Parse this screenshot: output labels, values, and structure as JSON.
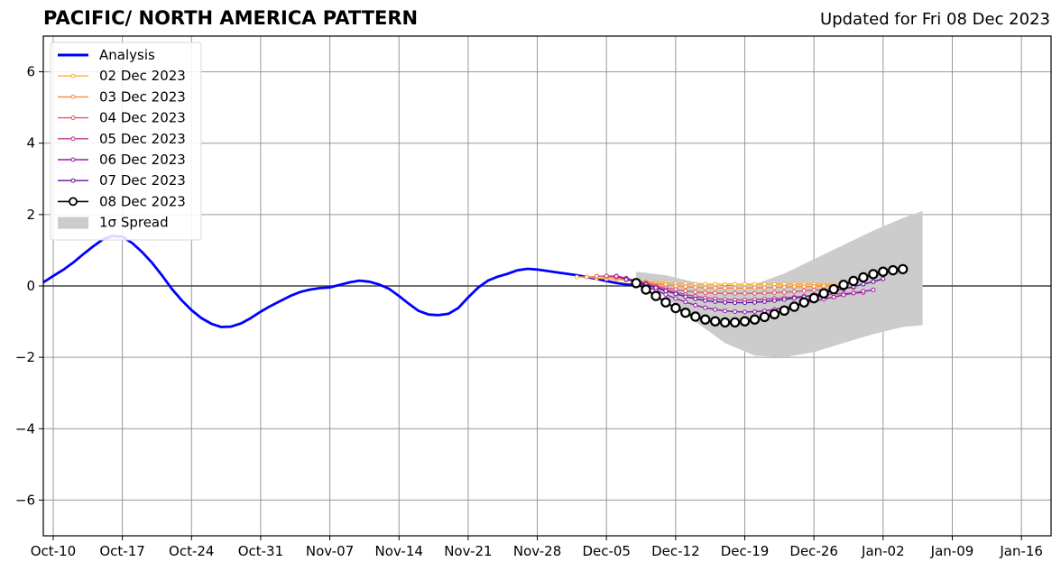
{
  "title": "PACIFIC/ NORTH AMERICA PATTERN",
  "subtitle": "Updated for Fri 08 Dec 2023",
  "chart_data": {
    "type": "line",
    "x_ticks": [
      "Oct-10",
      "Oct-17",
      "Oct-24",
      "Oct-31",
      "Nov-07",
      "Nov-14",
      "Nov-21",
      "Nov-28",
      "Dec-05",
      "Dec-12",
      "Dec-19",
      "Dec-26",
      "Jan-02",
      "Jan-09",
      "Jan-16"
    ],
    "y_ticks": [
      "6",
      "4",
      "2",
      "0",
      "−2",
      "−4",
      "−6"
    ],
    "xlim": [
      "2023-10-09",
      "2024-01-19"
    ],
    "ylim": [
      -7,
      7
    ],
    "grid": true,
    "legend_position": "top-left",
    "colors": {
      "Analysis": "#0000ff",
      "02 Dec 2023": "#ffb030",
      "03 Dec 2023": "#f58a40",
      "04 Dec 2023": "#e0586a",
      "05 Dec 2023": "#c03a8c",
      "06 Dec 2023": "#9a1aa6",
      "07 Dec 2023": "#6010a0",
      "08 Dec 2023": "#000000",
      "spread": "#cccccc"
    },
    "legend": [
      "Analysis",
      "02 Dec 2023",
      "03 Dec 2023",
      "04 Dec 2023",
      "05 Dec 2023",
      "06 Dec 2023",
      "07 Dec 2023",
      "08 Dec 2023",
      "1σ Spread"
    ],
    "analysis": {
      "name": "Analysis",
      "x": [
        "2023-10-09",
        "2023-10-10",
        "2023-10-11",
        "2023-10-12",
        "2023-10-13",
        "2023-10-14",
        "2023-10-15",
        "2023-10-16",
        "2023-10-17",
        "2023-10-18",
        "2023-10-19",
        "2023-10-20",
        "2023-10-21",
        "2023-10-22",
        "2023-10-23",
        "2023-10-24",
        "2023-10-25",
        "2023-10-26",
        "2023-10-27",
        "2023-10-28",
        "2023-10-29",
        "2023-10-30",
        "2023-10-31",
        "2023-11-01",
        "2023-11-02",
        "2023-11-03",
        "2023-11-04",
        "2023-11-05",
        "2023-11-06",
        "2023-11-07",
        "2023-11-08",
        "2023-11-09",
        "2023-11-10",
        "2023-11-11",
        "2023-11-12",
        "2023-11-13",
        "2023-11-14",
        "2023-11-15",
        "2023-11-16",
        "2023-11-17",
        "2023-11-18",
        "2023-11-19",
        "2023-11-20",
        "2023-11-21",
        "2023-11-22",
        "2023-11-23",
        "2023-11-24",
        "2023-11-25",
        "2023-11-26",
        "2023-11-27",
        "2023-11-28",
        "2023-11-29",
        "2023-11-30",
        "2023-12-01",
        "2023-12-02",
        "2023-12-03",
        "2023-12-04",
        "2023-12-05",
        "2023-12-06",
        "2023-12-07",
        "2023-12-08"
      ],
      "y": [
        0.1,
        0.28,
        0.45,
        0.65,
        0.88,
        1.1,
        1.3,
        1.4,
        1.38,
        1.2,
        0.95,
        0.65,
        0.3,
        -0.08,
        -0.4,
        -0.68,
        -0.9,
        -1.06,
        -1.15,
        -1.14,
        -1.05,
        -0.9,
        -0.72,
        -0.56,
        -0.42,
        -0.28,
        -0.17,
        -0.1,
        -0.06,
        -0.04,
        0.03,
        0.1,
        0.15,
        0.12,
        0.04,
        -0.08,
        -0.28,
        -0.5,
        -0.7,
        -0.8,
        -0.82,
        -0.78,
        -0.62,
        -0.32,
        -0.05,
        0.15,
        0.26,
        0.34,
        0.44,
        0.48,
        0.46,
        0.42,
        0.38,
        0.34,
        0.3,
        0.25,
        0.2,
        0.14,
        0.08,
        0.04,
        0.02
      ]
    },
    "forecasts": [
      {
        "name": "02 Dec 2023",
        "start": "2023-12-02",
        "y": [
          0.25,
          0.25,
          0.22,
          0.2,
          0.18,
          0.16,
          0.14,
          0.12,
          0.1,
          0.08,
          0.07,
          0.06,
          0.05,
          0.05,
          0.05,
          0.05,
          0.05,
          0.05,
          0.05,
          0.05,
          0.05,
          0.05,
          0.05,
          0.05,
          0.05,
          0.05,
          0.05
        ]
      },
      {
        "name": "03 Dec 2023",
        "start": "2023-12-03",
        "y": [
          0.25,
          0.27,
          0.25,
          0.22,
          0.18,
          0.14,
          0.1,
          0.06,
          0.03,
          0.0,
          -0.02,
          -0.04,
          -0.05,
          -0.06,
          -0.06,
          -0.06,
          -0.06,
          -0.05,
          -0.05,
          -0.04,
          -0.03,
          -0.02,
          -0.02,
          -0.01,
          0.0,
          0.0,
          0.0
        ]
      },
      {
        "name": "04 Dec 2023",
        "start": "2023-12-04",
        "y": [
          0.27,
          0.28,
          0.25,
          0.2,
          0.14,
          0.08,
          0.01,
          -0.05,
          -0.1,
          -0.14,
          -0.17,
          -0.19,
          -0.2,
          -0.21,
          -0.21,
          -0.21,
          -0.21,
          -0.2,
          -0.19,
          -0.18,
          -0.16,
          -0.14,
          -0.12,
          -0.1,
          -0.08,
          -0.06,
          -0.05
        ]
      },
      {
        "name": "05 Dec 2023",
        "start": "2023-12-05",
        "y": [
          0.28,
          0.28,
          0.22,
          0.15,
          0.07,
          -0.02,
          -0.1,
          -0.18,
          -0.24,
          -0.29,
          -0.33,
          -0.36,
          -0.38,
          -0.39,
          -0.39,
          -0.38,
          -0.37,
          -0.35,
          -0.33,
          -0.31,
          -0.29,
          -0.27,
          -0.25,
          -0.23,
          -0.21,
          -0.2,
          -0.19
        ]
      },
      {
        "name": "06 Dec 2023",
        "start": "2023-12-06",
        "y": [
          0.27,
          0.2,
          0.1,
          0.0,
          -0.12,
          -0.24,
          -0.35,
          -0.45,
          -0.54,
          -0.61,
          -0.66,
          -0.7,
          -0.72,
          -0.73,
          -0.72,
          -0.7,
          -0.66,
          -0.61,
          -0.55,
          -0.49,
          -0.43,
          -0.37,
          -0.31,
          -0.25,
          -0.2,
          -0.15,
          -0.11
        ]
      },
      {
        "name": "07 Dec 2023",
        "start": "2023-12-07",
        "y": [
          0.18,
          0.12,
          0.04,
          -0.05,
          -0.14,
          -0.22,
          -0.3,
          -0.36,
          -0.41,
          -0.44,
          -0.46,
          -0.47,
          -0.47,
          -0.46,
          -0.44,
          -0.41,
          -0.38,
          -0.34,
          -0.3,
          -0.25,
          -0.2,
          -0.14,
          -0.08,
          -0.02,
          0.05,
          0.12,
          0.2
        ]
      },
      {
        "name": "08 Dec 2023",
        "start": "2023-12-08",
        "y": [
          0.08,
          -0.1,
          -0.28,
          -0.46,
          -0.62,
          -0.75,
          -0.86,
          -0.94,
          -0.99,
          -1.02,
          -1.02,
          -0.99,
          -0.94,
          -0.87,
          -0.79,
          -0.69,
          -0.58,
          -0.46,
          -0.34,
          -0.21,
          -0.09,
          0.03,
          0.14,
          0.24,
          0.33,
          0.4,
          0.44,
          0.47
        ]
      }
    ],
    "spread": {
      "name": "1σ Spread",
      "x": [
        "2023-12-08",
        "2023-12-11",
        "2023-12-14",
        "2023-12-17",
        "2023-12-20",
        "2023-12-23",
        "2023-12-26",
        "2023-12-29",
        "2024-01-01",
        "2024-01-04",
        "2024-01-06"
      ],
      "upper": [
        0.4,
        0.3,
        0.1,
        0.0,
        0.05,
        0.35,
        0.75,
        1.15,
        1.55,
        1.9,
        2.1
      ],
      "lower": [
        0.2,
        -0.3,
        -1.0,
        -1.6,
        -1.95,
        -2.0,
        -1.85,
        -1.6,
        -1.35,
        -1.15,
        -1.1
      ]
    }
  }
}
